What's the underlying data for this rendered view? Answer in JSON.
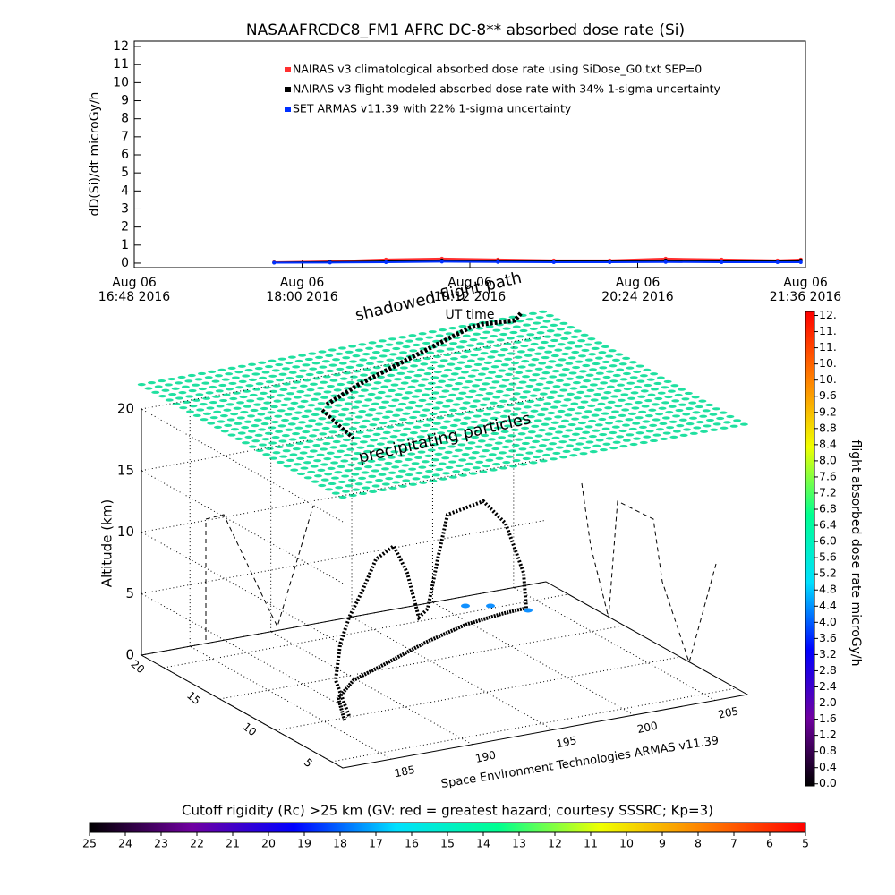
{
  "chart_data": [
    {
      "type": "line",
      "title": "NASAAFRCDC8_FM1 AFRC DC-8** absorbed dose rate (Si)",
      "y_label": "dD(Si)/dt microGy/h",
      "x_label": "UT time",
      "xlim": [
        "2016-08-06 16:48",
        "2016-08-06 21:36"
      ],
      "xticks": [
        {
          "value": "2016-08-06 16:48",
          "label": "Aug 06 16:48 2016"
        },
        {
          "value": "2016-08-06 18:00",
          "label": "Aug 06 18:00 2016"
        },
        {
          "value": "2016-08-06 19:12",
          "label": "Aug 06 19:12 2016"
        },
        {
          "value": "2016-08-06 20:24",
          "label": "Aug 06 20:24 2016"
        },
        {
          "value": "2016-08-06 21:36",
          "label": "Aug 06 21:36 2016"
        }
      ],
      "ylim": [
        -0.25,
        12.3
      ],
      "yticks": [
        0,
        1,
        2,
        3,
        4,
        5,
        6,
        7,
        8,
        9,
        10,
        11,
        12
      ],
      "x": [
        "2016-08-06 17:48",
        "2016-08-06 18:12",
        "2016-08-06 18:36",
        "2016-08-06 19:00",
        "2016-08-06 19:24",
        "2016-08-06 19:48",
        "2016-08-06 20:12",
        "2016-08-06 20:36",
        "2016-08-06 21:00",
        "2016-08-06 21:24",
        "2016-08-06 21:34"
      ],
      "series": [
        {
          "name": "NAIRAS v3 climatological absorbed dose rate using SiDose_G0.txt SEP=0",
          "color": "#ff3030",
          "values": [
            0.05,
            0.1,
            0.2,
            0.25,
            0.2,
            0.15,
            0.15,
            0.25,
            0.2,
            0.15,
            0.2
          ]
        },
        {
          "name": "NAIRAS v3 flight modeled absorbed dose rate with 34% 1-sigma uncertainty",
          "color": "#000000",
          "values": [
            0.03,
            0.06,
            0.1,
            0.15,
            0.12,
            0.1,
            0.1,
            0.15,
            0.1,
            0.1,
            0.15
          ]
        },
        {
          "name": "SET ARMAS v11.39 with 22% 1-sigma uncertainty",
          "color": "#0030ff",
          "values": [
            0.02,
            0.03,
            0.05,
            0.08,
            0.06,
            0.05,
            0.05,
            0.06,
            0.05,
            0.05,
            0.05
          ]
        }
      ]
    },
    {
      "type": "colorbar",
      "orientation": "vertical",
      "label": "flight absorbed dose rate microGy/h",
      "lim": [
        -0.05,
        11.7
      ],
      "ticks": [
        {
          "value": 0,
          "label": "0.0"
        },
        0.4,
        0.8,
        1.2,
        1.6,
        {
          "value": 2,
          "label": "2.0"
        },
        2.4,
        2.8,
        3.2,
        3.6,
        {
          "value": 4,
          "label": "4.0"
        },
        4.4,
        4.8,
        5.2,
        5.6,
        {
          "value": 6,
          "label": "6.0"
        },
        6.4,
        6.8,
        7.2,
        7.6,
        {
          "value": 8,
          "label": "8.0"
        },
        8.4,
        8.8,
        9.2,
        9.6,
        {
          "value": 10,
          "label": "10."
        },
        {
          "value": 10.4,
          "label": "10."
        },
        {
          "value": 10.8,
          "label": "11."
        },
        {
          "value": 11.2,
          "label": "11."
        },
        {
          "value": 11.6,
          "label": "12."
        }
      ],
      "colors": [
        "#000000",
        "#7000a0",
        "#0000ff",
        "#00e0ff",
        "#00ff90",
        "#f0ff00",
        "#ff8000",
        "#ff0000"
      ]
    },
    {
      "type": "surface3d",
      "z_label": "Altitude (km)",
      "xlim": [
        182,
        207
      ],
      "xticks": [
        185,
        190,
        195,
        200,
        205
      ],
      "ylim": [
        4,
        22
      ],
      "yticks": [
        5,
        10,
        15,
        20
      ],
      "zlim": [
        0,
        20
      ],
      "zticks": [
        0,
        5,
        10,
        15,
        20
      ],
      "annotations": [
        "shadowed flight path",
        "precipitating particles",
        "Space Environment Technologies ARMAS v11.39"
      ]
    },
    {
      "type": "colorbar",
      "orientation": "horizontal",
      "label": "Cutoff rigidity (Rc) >25 km (GV: red = greatest hazard; courtesy SSSRC; Kp=3)",
      "lim": [
        25,
        5
      ],
      "ticks": [
        25,
        24,
        23,
        22,
        21,
        20,
        19,
        18,
        17,
        16,
        15,
        14,
        13,
        12,
        11,
        10,
        9,
        8,
        7,
        6,
        5
      ],
      "colors": [
        "#000000",
        "#7000a0",
        "#0000ff",
        "#00e0ff",
        "#00ff90",
        "#f0ff00",
        "#ff8000",
        "#ff0000"
      ]
    }
  ]
}
